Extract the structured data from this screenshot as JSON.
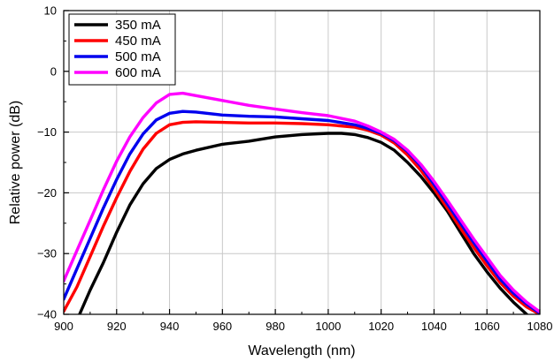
{
  "chart_data": {
    "type": "line",
    "xlabel": "Wavelength (nm)",
    "ylabel": "Relative power (dB)",
    "xlim": [
      900,
      1080
    ],
    "ylim": [
      -40,
      10
    ],
    "x_ticks": [
      900,
      920,
      940,
      960,
      980,
      1000,
      1020,
      1040,
      1060,
      1080
    ],
    "y_ticks": [
      10,
      0,
      -10,
      -20,
      -30,
      -40
    ],
    "x_tick_labels": [
      "900",
      "920",
      "940",
      "960",
      "980",
      "1000",
      "1020",
      "1040",
      "1060",
      "1080"
    ],
    "y_tick_labels": [
      "10",
      "0",
      "−10",
      "−20",
      "−30",
      "−40"
    ],
    "grid": true,
    "legend_position": "top-left",
    "series": [
      {
        "name": "350 mA",
        "color": "#000000",
        "points": [
          [
            906,
            -40
          ],
          [
            910,
            -36
          ],
          [
            915,
            -31.5
          ],
          [
            920,
            -26.5
          ],
          [
            925,
            -22
          ],
          [
            930,
            -18.5
          ],
          [
            935,
            -16
          ],
          [
            940,
            -14.5
          ],
          [
            945,
            -13.6
          ],
          [
            950,
            -13
          ],
          [
            960,
            -12
          ],
          [
            970,
            -11.5
          ],
          [
            980,
            -10.8
          ],
          [
            990,
            -10.4
          ],
          [
            1000,
            -10.2
          ],
          [
            1005,
            -10.2
          ],
          [
            1010,
            -10.4
          ],
          [
            1015,
            -10.9
          ],
          [
            1020,
            -11.7
          ],
          [
            1025,
            -13
          ],
          [
            1030,
            -15
          ],
          [
            1035,
            -17.3
          ],
          [
            1040,
            -20
          ],
          [
            1045,
            -23
          ],
          [
            1050,
            -26.5
          ],
          [
            1055,
            -30
          ],
          [
            1060,
            -33
          ],
          [
            1065,
            -35.7
          ],
          [
            1070,
            -38
          ],
          [
            1075,
            -40
          ]
        ]
      },
      {
        "name": "450 mA",
        "color": "#ff0000",
        "points": [
          [
            900,
            -39.5
          ],
          [
            905,
            -35.5
          ],
          [
            910,
            -30.5
          ],
          [
            915,
            -25.5
          ],
          [
            920,
            -20.8
          ],
          [
            925,
            -16.5
          ],
          [
            930,
            -12.8
          ],
          [
            935,
            -10.2
          ],
          [
            940,
            -8.8
          ],
          [
            945,
            -8.4
          ],
          [
            950,
            -8.3
          ],
          [
            960,
            -8.4
          ],
          [
            970,
            -8.5
          ],
          [
            980,
            -8.5
          ],
          [
            990,
            -8.6
          ],
          [
            1000,
            -8.8
          ],
          [
            1010,
            -9.2
          ],
          [
            1015,
            -9.7
          ],
          [
            1020,
            -10.5
          ],
          [
            1025,
            -11.8
          ],
          [
            1030,
            -13.8
          ],
          [
            1035,
            -16.3
          ],
          [
            1040,
            -19.3
          ],
          [
            1045,
            -22.5
          ],
          [
            1050,
            -25.8
          ],
          [
            1055,
            -29
          ],
          [
            1060,
            -32
          ],
          [
            1065,
            -34.8
          ],
          [
            1070,
            -37
          ],
          [
            1075,
            -38.8
          ],
          [
            1080,
            -40
          ]
        ]
      },
      {
        "name": "500 mA",
        "color": "#0000ee",
        "points": [
          [
            900,
            -37.5
          ],
          [
            905,
            -32.5
          ],
          [
            910,
            -27.5
          ],
          [
            915,
            -22.5
          ],
          [
            920,
            -17.8
          ],
          [
            925,
            -13.6
          ],
          [
            930,
            -10.3
          ],
          [
            935,
            -8
          ],
          [
            940,
            -6.9
          ],
          [
            945,
            -6.6
          ],
          [
            950,
            -6.7
          ],
          [
            960,
            -7.2
          ],
          [
            970,
            -7.4
          ],
          [
            980,
            -7.5
          ],
          [
            990,
            -7.8
          ],
          [
            1000,
            -8.1
          ],
          [
            1010,
            -8.8
          ],
          [
            1015,
            -9.4
          ],
          [
            1020,
            -10.2
          ],
          [
            1025,
            -11.4
          ],
          [
            1030,
            -13.2
          ],
          [
            1035,
            -15.6
          ],
          [
            1040,
            -18.6
          ],
          [
            1045,
            -21.8
          ],
          [
            1050,
            -25
          ],
          [
            1055,
            -28.2
          ],
          [
            1060,
            -31.2
          ],
          [
            1065,
            -34.2
          ],
          [
            1070,
            -36.5
          ],
          [
            1075,
            -38.3
          ],
          [
            1080,
            -39.8
          ]
        ]
      },
      {
        "name": "600 mA",
        "color": "#ff00ff",
        "points": [
          [
            900,
            -34.5
          ],
          [
            905,
            -29.5
          ],
          [
            910,
            -24.5
          ],
          [
            915,
            -19.5
          ],
          [
            920,
            -14.8
          ],
          [
            925,
            -10.8
          ],
          [
            930,
            -7.6
          ],
          [
            935,
            -5.2
          ],
          [
            940,
            -3.8
          ],
          [
            945,
            -3.6
          ],
          [
            950,
            -4
          ],
          [
            960,
            -4.8
          ],
          [
            970,
            -5.6
          ],
          [
            980,
            -6.2
          ],
          [
            990,
            -6.8
          ],
          [
            1000,
            -7.3
          ],
          [
            1010,
            -8.2
          ],
          [
            1015,
            -9
          ],
          [
            1020,
            -10
          ],
          [
            1025,
            -11.2
          ],
          [
            1030,
            -13
          ],
          [
            1035,
            -15.3
          ],
          [
            1040,
            -18.1
          ],
          [
            1045,
            -21.2
          ],
          [
            1050,
            -24.4
          ],
          [
            1055,
            -27.6
          ],
          [
            1060,
            -30.6
          ],
          [
            1065,
            -33.6
          ],
          [
            1070,
            -36
          ],
          [
            1075,
            -38
          ],
          [
            1080,
            -39.6
          ]
        ]
      }
    ]
  }
}
